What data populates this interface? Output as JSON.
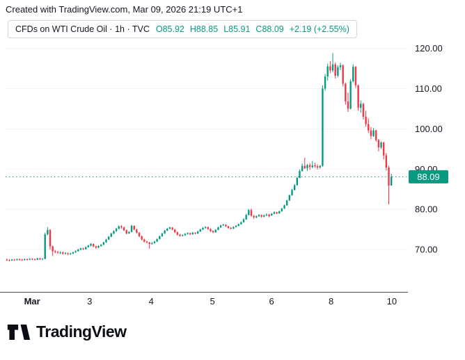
{
  "attribution": "Created with TradingView.com, Mar 09, 2026 21:19 UTC+1",
  "legend": {
    "title": "CFDs on WTI Crude Oil · 1h · TVC",
    "ohlc": [
      {
        "k": "O",
        "v": "85.92"
      },
      {
        "k": "H",
        "v": "88.85"
      },
      {
        "k": "L",
        "v": "85.91"
      },
      {
        "k": "C",
        "v": "88.09"
      }
    ],
    "change": "+2.19 (+2.55%)"
  },
  "logo": {
    "text": "TradingView"
  },
  "colors": {
    "up": "#089981",
    "down": "#F23645",
    "grid": "#f0f3fa",
    "text": "#131722",
    "axis_line": "#4a4e59",
    "badge_text": "#ffffff"
  },
  "chart_data": {
    "type": "candlestick",
    "title": "CFDs on WTI Crude Oil",
    "interval": "1h",
    "exchange": "TVC",
    "last_open": 85.92,
    "last_high": 88.85,
    "last_low": 85.91,
    "last_price": 88.09,
    "price_label": "88.09",
    "change": "+2.19",
    "change_pct": "+2.55%",
    "ylim": [
      59.5,
      122.5
    ],
    "grid": "horizontal",
    "y_ticks": [
      {
        "value": 120,
        "label": "120.00"
      },
      {
        "value": 110,
        "label": "110.00"
      },
      {
        "value": 100,
        "label": "100.00"
      },
      {
        "value": 90,
        "label": "90.00"
      },
      {
        "value": 80,
        "label": "80.00"
      },
      {
        "value": 70,
        "label": "70.00"
      }
    ],
    "x_ticks": [
      {
        "label": "Mar",
        "pos": 0.066,
        "bold": true
      },
      {
        "label": "3",
        "pos": 0.209,
        "bold": false
      },
      {
        "label": "4",
        "pos": 0.362,
        "bold": false
      },
      {
        "label": "5",
        "pos": 0.514,
        "bold": false
      },
      {
        "label": "6",
        "pos": 0.661,
        "bold": false
      },
      {
        "label": "8",
        "pos": 0.809,
        "bold": false
      },
      {
        "label": "10",
        "pos": 0.96,
        "bold": false
      }
    ],
    "candles": [
      [
        67.5,
        67.8,
        67.2,
        67.4
      ],
      [
        67.4,
        67.6,
        67.1,
        67.3
      ],
      [
        67.3,
        67.7,
        67.2,
        67.5
      ],
      [
        67.5,
        67.7,
        67.2,
        67.4
      ],
      [
        67.4,
        67.8,
        67.3,
        67.6
      ],
      [
        67.6,
        67.8,
        67.3,
        67.5
      ],
      [
        67.5,
        67.7,
        67.2,
        67.4
      ],
      [
        67.4,
        67.8,
        67.3,
        67.6
      ],
      [
        67.6,
        67.8,
        67.3,
        67.5
      ],
      [
        67.5,
        67.9,
        67.4,
        67.7
      ],
      [
        67.7,
        67.9,
        67.4,
        67.6
      ],
      [
        67.6,
        67.8,
        67.3,
        67.5
      ],
      [
        67.5,
        68.0,
        67.4,
        67.8
      ],
      [
        67.8,
        68.0,
        67.4,
        67.6
      ],
      [
        67.6,
        67.9,
        67.4,
        67.7
      ],
      [
        67.7,
        74.2,
        67.6,
        73.8
      ],
      [
        73.8,
        75.6,
        73.5,
        74.9
      ],
      [
        74.9,
        75.1,
        70.0,
        70.8
      ],
      [
        70.8,
        71.0,
        68.4,
        69.6
      ],
      [
        69.6,
        69.9,
        69.1,
        69.4
      ],
      [
        69.4,
        69.7,
        69.0,
        69.2
      ],
      [
        69.2,
        69.6,
        68.9,
        69.3
      ],
      [
        69.3,
        69.5,
        68.7,
        69.0
      ],
      [
        69.0,
        69.4,
        68.8,
        69.1
      ],
      [
        69.1,
        69.3,
        68.6,
        68.9
      ],
      [
        68.9,
        69.3,
        68.7,
        69.0
      ],
      [
        69.0,
        69.5,
        68.9,
        69.3
      ],
      [
        69.3,
        69.8,
        69.2,
        69.6
      ],
      [
        69.6,
        70.2,
        69.5,
        70.0
      ],
      [
        70.0,
        70.5,
        69.8,
        70.3
      ],
      [
        70.3,
        70.5,
        69.9,
        70.1
      ],
      [
        70.1,
        70.8,
        70.0,
        70.6
      ],
      [
        70.6,
        71.2,
        70.5,
        71.0
      ],
      [
        71.0,
        71.6,
        70.8,
        71.4
      ],
      [
        71.4,
        71.5,
        70.6,
        70.8
      ],
      [
        70.8,
        71.0,
        70.2,
        70.5
      ],
      [
        70.5,
        71.1,
        70.4,
        70.9
      ],
      [
        70.9,
        71.4,
        70.7,
        71.2
      ],
      [
        71.2,
        72.0,
        71.1,
        71.8
      ],
      [
        71.8,
        72.7,
        71.7,
        72.5
      ],
      [
        72.5,
        73.4,
        72.4,
        73.2
      ],
      [
        73.2,
        74.2,
        73.1,
        74.0
      ],
      [
        74.0,
        74.8,
        73.8,
        74.6
      ],
      [
        74.6,
        75.4,
        74.4,
        75.2
      ],
      [
        75.2,
        76.0,
        75.0,
        75.8
      ],
      [
        75.8,
        76.1,
        75.2,
        75.5
      ],
      [
        75.5,
        75.7,
        74.6,
        74.8
      ],
      [
        74.8,
        75.0,
        73.8,
        74.0
      ],
      [
        74.0,
        74.6,
        73.9,
        74.4
      ],
      [
        74.4,
        76.2,
        74.3,
        75.9
      ],
      [
        75.9,
        76.0,
        74.8,
        75.0
      ],
      [
        75.0,
        75.2,
        74.0,
        74.2
      ],
      [
        74.2,
        74.4,
        73.1,
        73.3
      ],
      [
        73.3,
        73.5,
        72.3,
        72.5
      ],
      [
        72.5,
        72.7,
        71.8,
        72.0
      ],
      [
        72.0,
        72.2,
        71.5,
        71.8
      ],
      [
        71.8,
        71.9,
        70.2,
        71.4
      ],
      [
        71.4,
        71.9,
        71.2,
        71.6
      ],
      [
        71.6,
        72.2,
        71.5,
        72.0
      ],
      [
        72.0,
        72.8,
        71.9,
        72.6
      ],
      [
        72.6,
        73.5,
        72.5,
        73.3
      ],
      [
        73.3,
        74.2,
        73.2,
        74.0
      ],
      [
        74.0,
        74.9,
        73.9,
        74.7
      ],
      [
        74.7,
        75.4,
        74.6,
        75.2
      ],
      [
        75.2,
        75.7,
        75.0,
        75.5
      ],
      [
        75.5,
        75.6,
        74.8,
        75.0
      ],
      [
        75.0,
        75.1,
        74.1,
        74.3
      ],
      [
        74.3,
        74.5,
        73.5,
        73.7
      ],
      [
        73.7,
        73.9,
        73.2,
        73.4
      ],
      [
        73.4,
        73.8,
        73.3,
        73.6
      ],
      [
        73.6,
        74.1,
        73.4,
        73.9
      ],
      [
        73.9,
        74.3,
        73.7,
        74.1
      ],
      [
        74.1,
        74.2,
        73.6,
        73.8
      ],
      [
        73.8,
        74.4,
        73.7,
        74.2
      ],
      [
        74.2,
        74.3,
        73.8,
        74.0
      ],
      [
        74.0,
        74.7,
        73.9,
        74.5
      ],
      [
        74.5,
        75.2,
        74.4,
        75.0
      ],
      [
        75.0,
        75.6,
        74.9,
        75.4
      ],
      [
        75.4,
        75.8,
        75.2,
        75.6
      ],
      [
        75.6,
        75.7,
        74.9,
        75.1
      ],
      [
        75.1,
        75.3,
        74.4,
        74.6
      ],
      [
        74.6,
        74.8,
        74.1,
        74.3
      ],
      [
        74.3,
        75.1,
        74.2,
        74.9
      ],
      [
        74.9,
        75.7,
        74.8,
        75.5
      ],
      [
        75.5,
        76.2,
        75.4,
        76.0
      ],
      [
        76.0,
        76.4,
        75.9,
        76.2
      ],
      [
        76.2,
        76.3,
        75.6,
        75.8
      ],
      [
        75.8,
        75.9,
        75.2,
        75.4
      ],
      [
        75.4,
        75.6,
        75.0,
        75.2
      ],
      [
        75.2,
        75.8,
        75.1,
        75.6
      ],
      [
        75.6,
        76.1,
        75.5,
        75.9
      ],
      [
        75.9,
        76.5,
        75.8,
        76.3
      ],
      [
        76.3,
        77.0,
        76.2,
        76.8
      ],
      [
        76.8,
        77.8,
        76.7,
        77.5
      ],
      [
        77.5,
        78.9,
        77.4,
        78.6
      ],
      [
        78.6,
        80.1,
        78.5,
        79.8
      ],
      [
        79.8,
        80.2,
        78.2,
        78.4
      ],
      [
        78.4,
        78.6,
        77.6,
        78.0
      ],
      [
        78.0,
        78.5,
        77.8,
        78.3
      ],
      [
        78.3,
        78.8,
        78.1,
        78.6
      ],
      [
        78.6,
        78.7,
        77.9,
        78.2
      ],
      [
        78.2,
        78.7,
        78.0,
        78.5
      ],
      [
        78.5,
        79.0,
        78.3,
        78.7
      ],
      [
        78.7,
        78.9,
        78.0,
        78.3
      ],
      [
        78.5,
        79.1,
        78.4,
        78.9
      ],
      [
        78.9,
        79.5,
        78.8,
        79.3
      ],
      [
        79.3,
        79.4,
        78.8,
        79.0
      ],
      [
        79.0,
        79.7,
        78.9,
        79.5
      ],
      [
        79.5,
        80.4,
        79.4,
        80.2
      ],
      [
        80.2,
        81.2,
        80.1,
        81.0
      ],
      [
        81.0,
        82.4,
        80.9,
        82.2
      ],
      [
        82.2,
        83.7,
        82.1,
        83.5
      ],
      [
        83.5,
        85.1,
        83.4,
        84.8
      ],
      [
        84.8,
        86.3,
        84.7,
        86.0
      ],
      [
        86.0,
        88.1,
        85.9,
        87.8
      ],
      [
        87.8,
        89.9,
        87.7,
        89.5
      ],
      [
        89.5,
        91.4,
        89.4,
        90.8
      ],
      [
        90.8,
        92.8,
        90.0,
        90.2
      ],
      [
        90.2,
        91.3,
        89.6,
        91.0
      ],
      [
        91.0,
        91.5,
        89.8,
        90.5
      ],
      [
        90.5,
        92.0,
        90.2,
        90.9
      ],
      [
        90.9,
        91.6,
        90.3,
        90.7
      ],
      [
        90.7,
        91.2,
        89.9,
        90.4
      ],
      [
        90.4,
        91.0,
        90.1,
        90.8
      ],
      [
        90.8,
        110.8,
        90.6,
        110.0
      ],
      [
        110.0,
        113.6,
        109.5,
        113.0
      ],
      [
        113.0,
        116.2,
        112.0,
        115.5
      ],
      [
        115.5,
        116.8,
        113.8,
        114.5
      ],
      [
        114.5,
        118.8,
        114.0,
        116.0
      ],
      [
        116.0,
        116.5,
        112.5,
        113.2
      ],
      [
        113.2,
        115.8,
        112.8,
        115.3
      ],
      [
        115.3,
        116.4,
        114.6,
        115.8
      ],
      [
        115.8,
        116.0,
        110.5,
        111.2
      ],
      [
        111.2,
        111.5,
        106.0,
        106.8
      ],
      [
        106.8,
        109.0,
        104.2,
        105.0
      ],
      [
        105.0,
        112.3,
        104.8,
        111.8
      ],
      [
        111.8,
        116.0,
        111.5,
        115.4
      ],
      [
        115.4,
        115.6,
        110.2,
        110.8
      ],
      [
        110.8,
        111.0,
        104.5,
        105.2
      ],
      [
        105.2,
        107.0,
        104.0,
        106.2
      ],
      [
        106.2,
        106.5,
        102.3,
        103.0
      ],
      [
        103.0,
        104.5,
        100.5,
        101.2
      ],
      [
        101.2,
        102.6,
        99.0,
        99.6
      ],
      [
        99.6,
        100.4,
        97.4,
        98.2
      ],
      [
        98.2,
        100.2,
        98.0,
        99.6
      ],
      [
        99.6,
        99.8,
        96.8,
        97.2
      ],
      [
        97.2,
        97.5,
        94.4,
        95.4
      ],
      [
        95.4,
        96.9,
        95.0,
        96.6
      ],
      [
        96.6,
        96.8,
        92.4,
        93.4
      ],
      [
        93.4,
        94.0,
        89.6,
        90.4
      ],
      [
        90.4,
        90.8,
        81.2,
        85.9
      ],
      [
        85.92,
        88.85,
        85.91,
        88.09
      ]
    ]
  }
}
